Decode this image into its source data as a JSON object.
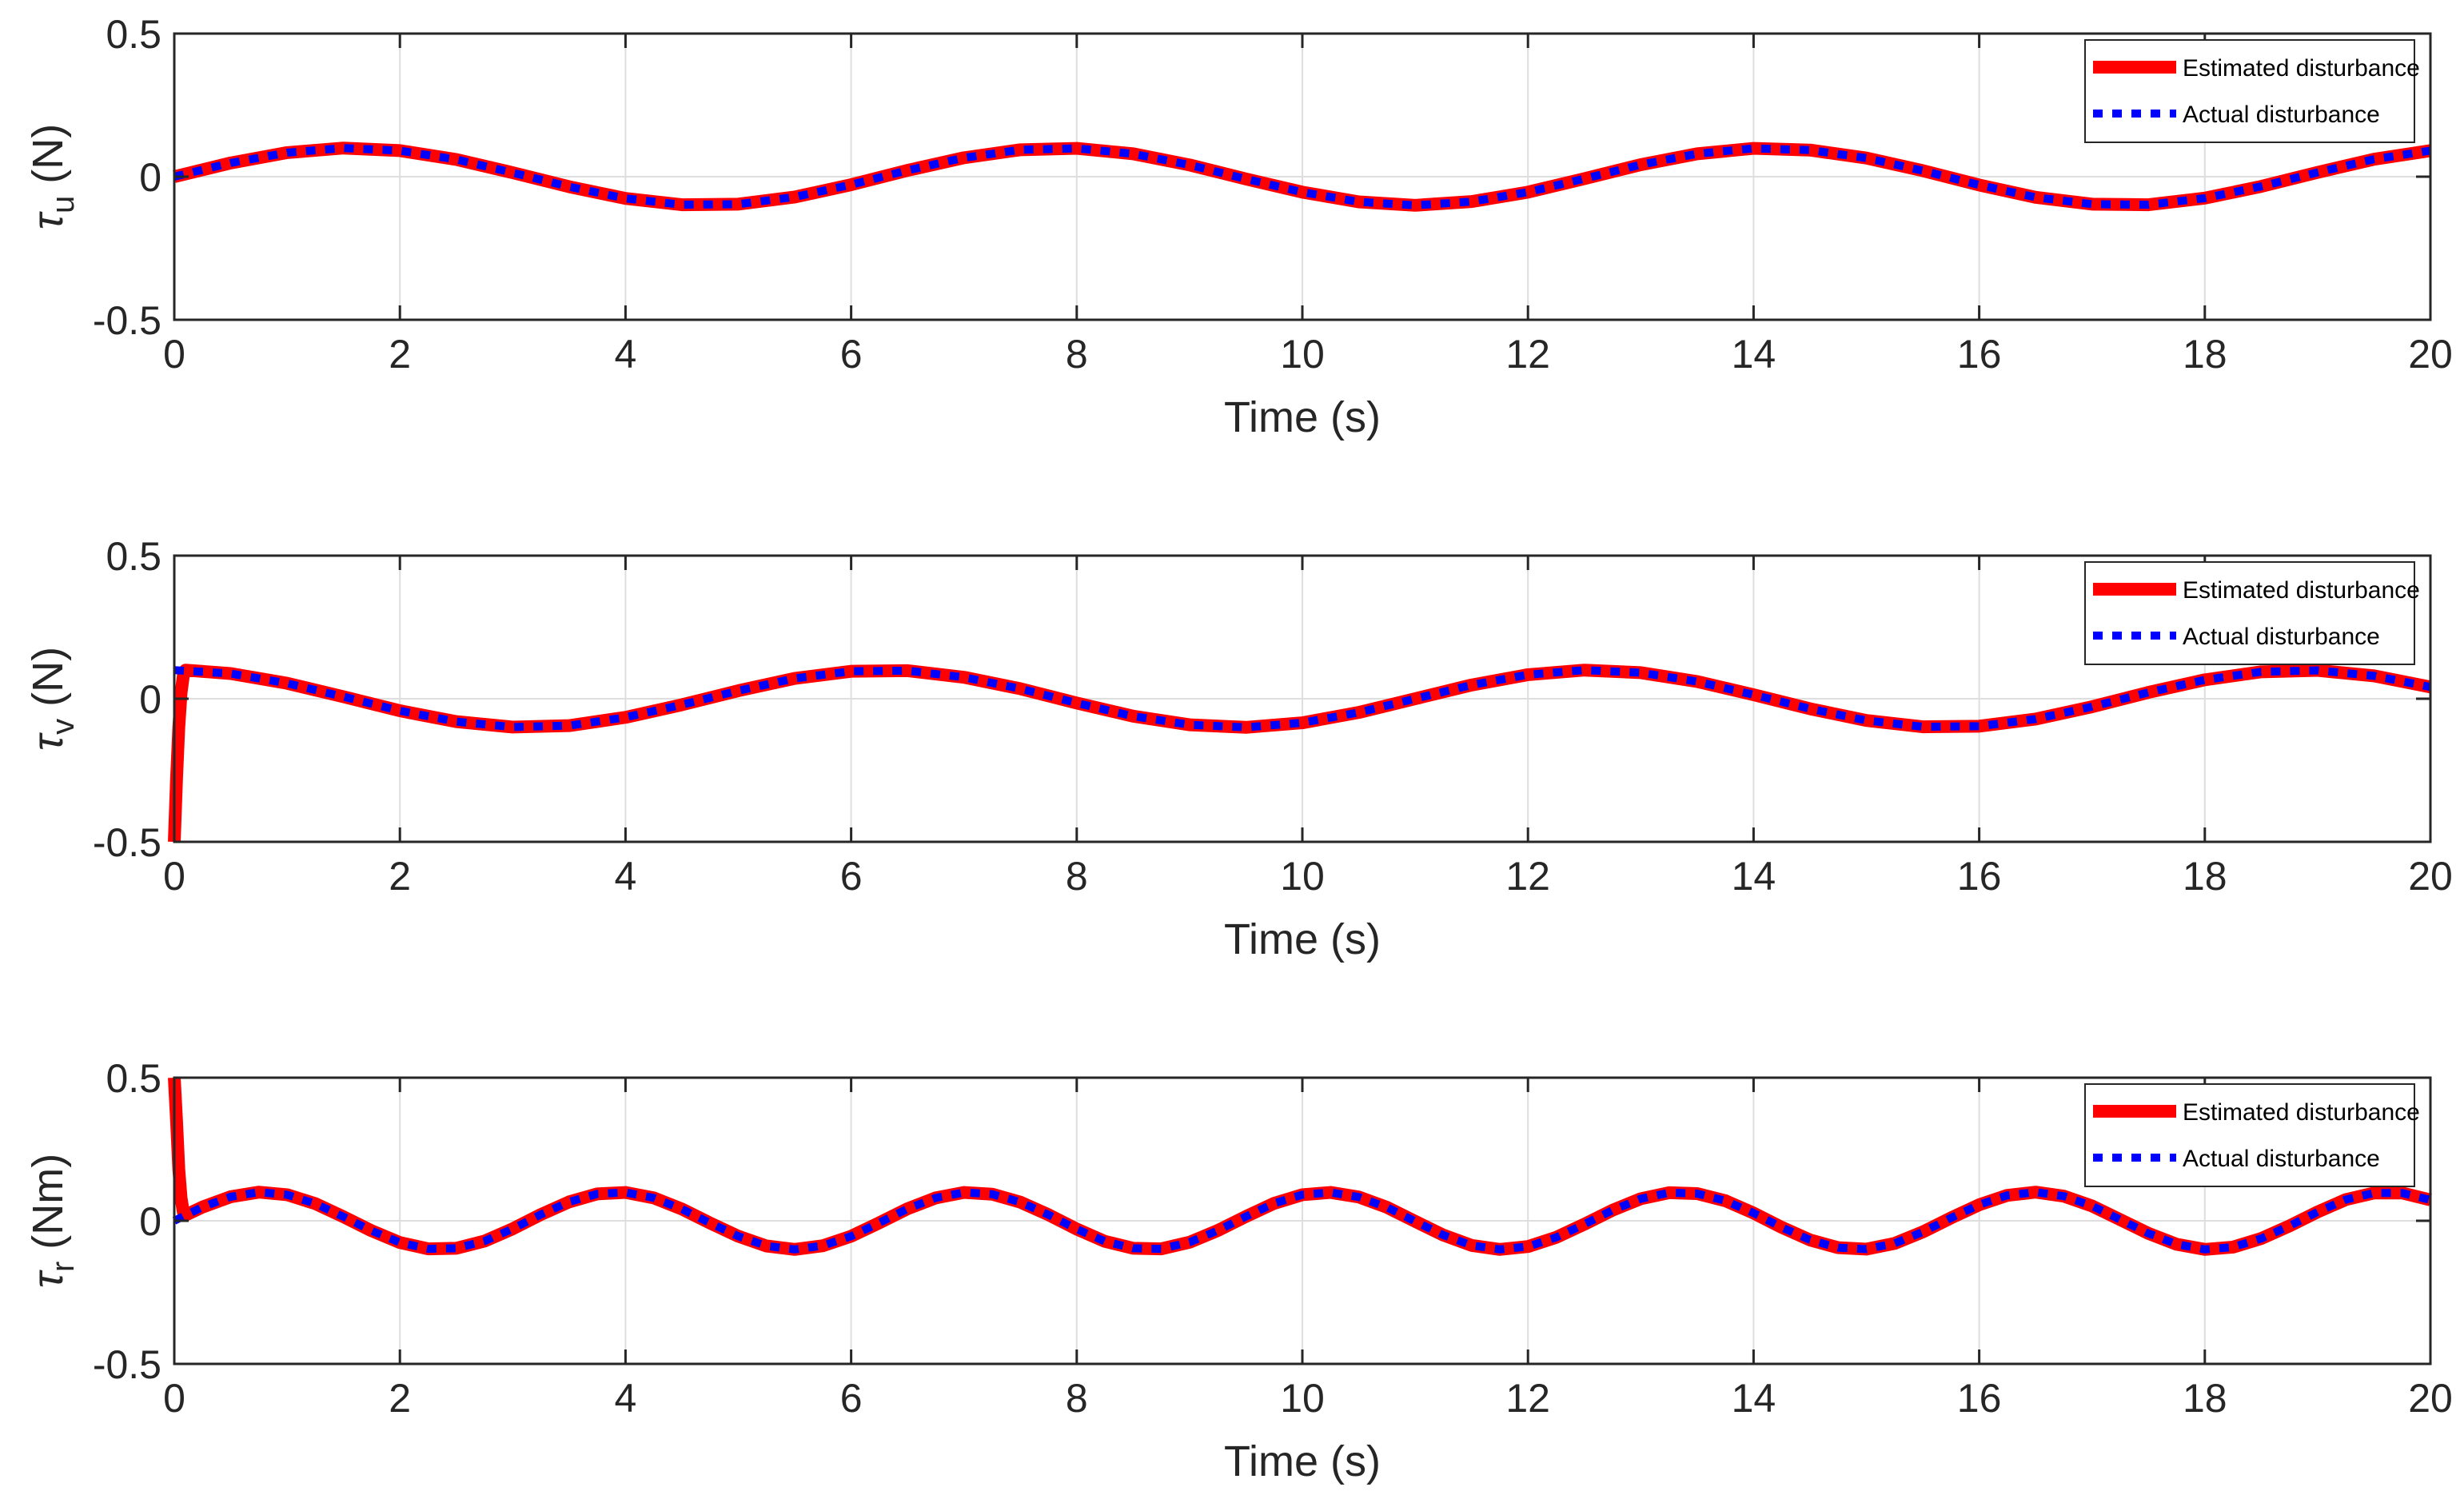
{
  "colors": {
    "estimated": "#ff0000",
    "actual": "#0000ff",
    "grid": "#dedede",
    "axis": "#262626"
  },
  "chart_data": [
    {
      "type": "line",
      "ylabel": {
        "symbol": "τ",
        "sub": "u",
        "unit": " (N)"
      },
      "xlabel": "Time (s)",
      "xlim": [
        0,
        20
      ],
      "ylim": [
        -0.5,
        0.5
      ],
      "xticks": [
        "0",
        "2",
        "4",
        "6",
        "8",
        "10",
        "12",
        "14",
        "16",
        "18",
        "20"
      ],
      "yticks": [
        "-0.5",
        "0",
        "0.5"
      ],
      "grid": true,
      "legend_position": "top-right",
      "series": [
        {
          "name": "Estimated disturbance",
          "style": "solid",
          "color": "#ff0000",
          "x": [
            0,
            0.5,
            1,
            1.5,
            2,
            2.5,
            3,
            3.5,
            4,
            4.5,
            5,
            5.5,
            6,
            6.5,
            7,
            7.5,
            8,
            8.5,
            9,
            9.5,
            10,
            10.5,
            11,
            11.5,
            12,
            12.5,
            13,
            13.5,
            14,
            14.5,
            15,
            15.5,
            16,
            16.5,
            17,
            17.5,
            18,
            18.5,
            19,
            19.5,
            20
          ],
          "y": [
            0,
            0.048,
            0.084,
            0.1,
            0.091,
            0.06,
            0.014,
            -0.035,
            -0.076,
            -0.098,
            -0.096,
            -0.071,
            -0.028,
            0.022,
            0.066,
            0.094,
            0.099,
            0.08,
            0.041,
            -0.008,
            -0.054,
            -0.088,
            -0.1,
            -0.087,
            -0.054,
            -0.007,
            0.042,
            0.08,
            0.099,
            0.093,
            0.065,
            0.021,
            -0.029,
            -0.072,
            -0.096,
            -0.098,
            -0.075,
            -0.034,
            0.015,
            0.061,
            0.091
          ]
        },
        {
          "name": "Actual disturbance",
          "style": "dotted",
          "color": "#0000ff",
          "x": [
            0,
            0.5,
            1,
            1.5,
            2,
            2.5,
            3,
            3.5,
            4,
            4.5,
            5,
            5.5,
            6,
            6.5,
            7,
            7.5,
            8,
            8.5,
            9,
            9.5,
            10,
            10.5,
            11,
            11.5,
            12,
            12.5,
            13,
            13.5,
            14,
            14.5,
            15,
            15.5,
            16,
            16.5,
            17,
            17.5,
            18,
            18.5,
            19,
            19.5,
            20
          ],
          "y": [
            0,
            0.048,
            0.084,
            0.1,
            0.091,
            0.06,
            0.014,
            -0.035,
            -0.076,
            -0.098,
            -0.096,
            -0.071,
            -0.028,
            0.022,
            0.066,
            0.094,
            0.099,
            0.08,
            0.041,
            -0.008,
            -0.054,
            -0.088,
            -0.1,
            -0.087,
            -0.054,
            -0.007,
            0.042,
            0.08,
            0.099,
            0.093,
            0.065,
            0.021,
            -0.029,
            -0.072,
            -0.096,
            -0.098,
            -0.075,
            -0.034,
            0.015,
            0.061,
            0.091
          ]
        }
      ]
    },
    {
      "type": "line",
      "ylabel": {
        "symbol": "τ",
        "sub": "v",
        "unit": " (N)"
      },
      "xlabel": "Time (s)",
      "xlim": [
        0,
        20
      ],
      "ylim": [
        -0.5,
        0.5
      ],
      "xticks": [
        "0",
        "2",
        "4",
        "6",
        "8",
        "10",
        "12",
        "14",
        "16",
        "18",
        "20"
      ],
      "yticks": [
        "-0.5",
        "0",
        "0.5"
      ],
      "grid": true,
      "legend_position": "top-right",
      "series": [
        {
          "name": "Estimated disturbance",
          "style": "solid",
          "color": "#ff0000",
          "x": [
            0,
            0.02,
            0.04,
            0.06,
            0.08,
            0.1,
            0.5,
            1,
            1.5,
            2,
            2.5,
            3,
            3.5,
            4,
            4.5,
            5,
            5.5,
            6,
            6.5,
            7,
            7.5,
            8,
            8.5,
            9,
            9.5,
            10,
            10.5,
            11,
            11.5,
            12,
            12.5,
            13,
            13.5,
            14,
            14.5,
            15,
            15.5,
            16,
            16.5,
            17,
            17.5,
            18,
            18.5,
            19,
            19.5,
            20
          ],
          "y": [
            -0.5,
            -0.28,
            -0.1,
            0.02,
            0.08,
            0.1,
            0.088,
            0.054,
            0.007,
            -0.042,
            -0.08,
            -0.099,
            -0.094,
            -0.065,
            -0.021,
            0.028,
            0.071,
            0.096,
            0.098,
            0.075,
            0.035,
            -0.015,
            -0.061,
            -0.091,
            -0.1,
            -0.084,
            -0.048,
            0.0,
            0.048,
            0.084,
            0.1,
            0.091,
            0.06,
            0.014,
            -0.035,
            -0.076,
            -0.098,
            -0.096,
            -0.071,
            -0.028,
            0.022,
            0.066,
            0.094,
            0.099,
            0.08,
            0.041
          ]
        },
        {
          "name": "Actual disturbance",
          "style": "dotted",
          "color": "#0000ff",
          "x": [
            0,
            0.5,
            1,
            1.5,
            2,
            2.5,
            3,
            3.5,
            4,
            4.5,
            5,
            5.5,
            6,
            6.5,
            7,
            7.5,
            8,
            8.5,
            9,
            9.5,
            10,
            10.5,
            11,
            11.5,
            12,
            12.5,
            13,
            13.5,
            14,
            14.5,
            15,
            15.5,
            16,
            16.5,
            17,
            17.5,
            18,
            18.5,
            19,
            19.5,
            20
          ],
          "y": [
            0.1,
            0.088,
            0.054,
            0.007,
            -0.042,
            -0.08,
            -0.099,
            -0.094,
            -0.065,
            -0.021,
            0.028,
            0.071,
            0.096,
            0.098,
            0.075,
            0.035,
            -0.015,
            -0.061,
            -0.091,
            -0.1,
            -0.084,
            -0.048,
            0.0,
            0.048,
            0.084,
            0.1,
            0.091,
            0.06,
            0.014,
            -0.035,
            -0.076,
            -0.098,
            -0.096,
            -0.071,
            -0.028,
            0.022,
            0.066,
            0.094,
            0.099,
            0.08,
            0.041
          ]
        }
      ]
    },
    {
      "type": "line",
      "ylabel": {
        "symbol": "τ",
        "sub": "r",
        "unit": " (Nm)"
      },
      "xlabel": "Time (s)",
      "xlim": [
        0,
        20
      ],
      "ylim": [
        -0.5,
        0.5
      ],
      "xticks": [
        "0",
        "2",
        "4",
        "6",
        "8",
        "10",
        "12",
        "14",
        "16",
        "18",
        "20"
      ],
      "yticks": [
        "-0.5",
        "0",
        "0.5"
      ],
      "grid": true,
      "legend_position": "top-right",
      "series": [
        {
          "name": "Estimated disturbance",
          "style": "solid",
          "color": "#ff0000",
          "x": [
            0,
            0.02,
            0.04,
            0.06,
            0.08,
            0.1,
            0.25,
            0.5,
            0.75,
            1,
            1.25,
            1.5,
            1.75,
            2,
            2.25,
            2.5,
            2.75,
            3,
            3.25,
            3.5,
            3.75,
            4,
            4.25,
            4.5,
            4.75,
            5,
            5.25,
            5.5,
            5.75,
            6,
            6.25,
            6.5,
            6.75,
            7,
            7.25,
            7.5,
            7.75,
            8,
            8.25,
            8.5,
            8.75,
            9,
            9.25,
            9.5,
            9.75,
            10,
            10.25,
            10.5,
            10.75,
            11,
            11.25,
            11.5,
            11.75,
            12,
            12.25,
            12.5,
            12.75,
            13,
            13.25,
            13.5,
            13.75,
            14,
            14.25,
            14.5,
            14.75,
            15,
            15.25,
            15.5,
            15.75,
            16,
            16.25,
            16.5,
            16.75,
            17,
            17.25,
            17.5,
            17.75,
            18,
            18.25,
            18.5,
            18.75,
            19,
            19.25,
            19.5,
            19.75,
            20
          ],
          "y": [
            0.5,
            0.35,
            0.18,
            0.08,
            0.03,
            0.02,
            0.048,
            0.084,
            0.1,
            0.091,
            0.06,
            0.014,
            -0.035,
            -0.076,
            -0.098,
            -0.096,
            -0.071,
            -0.028,
            0.022,
            0.066,
            0.094,
            0.099,
            0.08,
            0.041,
            -0.008,
            -0.054,
            -0.088,
            -0.1,
            -0.087,
            -0.054,
            -0.007,
            0.042,
            0.08,
            0.099,
            0.093,
            0.065,
            0.021,
            -0.029,
            -0.072,
            -0.096,
            -0.098,
            -0.075,
            -0.034,
            0.015,
            0.061,
            0.091,
            0.099,
            0.083,
            0.047,
            -0.002,
            -0.05,
            -0.086,
            -0.1,
            -0.09,
            -0.058,
            -0.012,
            0.037,
            0.077,
            0.098,
            0.095,
            0.07,
            0.027,
            -0.023,
            -0.067,
            -0.094,
            -0.099,
            -0.079,
            -0.039,
            0.01,
            0.056,
            0.089,
            0.1,
            0.086,
            0.052,
            0.004,
            -0.044,
            -0.082,
            -0.1,
            -0.092,
            -0.062,
            -0.018,
            0.031,
            0.074,
            0.097,
            0.097,
            0.073
          ]
        },
        {
          "name": "Actual disturbance",
          "style": "dotted",
          "color": "#0000ff",
          "x": [
            0,
            0.25,
            0.5,
            0.75,
            1,
            1.25,
            1.5,
            1.75,
            2,
            2.25,
            2.5,
            2.75,
            3,
            3.25,
            3.5,
            3.75,
            4,
            4.25,
            4.5,
            4.75,
            5,
            5.25,
            5.5,
            5.75,
            6,
            6.25,
            6.5,
            6.75,
            7,
            7.25,
            7.5,
            7.75,
            8,
            8.25,
            8.5,
            8.75,
            9,
            9.25,
            9.5,
            9.75,
            10,
            10.25,
            10.5,
            10.75,
            11,
            11.25,
            11.5,
            11.75,
            12,
            12.25,
            12.5,
            12.75,
            13,
            13.25,
            13.5,
            13.75,
            14,
            14.25,
            14.5,
            14.75,
            15,
            15.25,
            15.5,
            15.75,
            16,
            16.25,
            16.5,
            16.75,
            17,
            17.25,
            17.5,
            17.75,
            18,
            18.25,
            18.5,
            18.75,
            19,
            19.25,
            19.5,
            19.75,
            20
          ],
          "y": [
            0,
            0.048,
            0.084,
            0.1,
            0.091,
            0.06,
            0.014,
            -0.035,
            -0.076,
            -0.098,
            -0.096,
            -0.071,
            -0.028,
            0.022,
            0.066,
            0.094,
            0.099,
            0.08,
            0.041,
            -0.008,
            -0.054,
            -0.088,
            -0.1,
            -0.087,
            -0.054,
            -0.007,
            0.042,
            0.08,
            0.099,
            0.093,
            0.065,
            0.021,
            -0.029,
            -0.072,
            -0.096,
            -0.098,
            -0.075,
            -0.034,
            0.015,
            0.061,
            0.091,
            0.099,
            0.083,
            0.047,
            -0.002,
            -0.05,
            -0.086,
            -0.1,
            -0.09,
            -0.058,
            -0.012,
            0.037,
            0.077,
            0.098,
            0.095,
            0.07,
            0.027,
            -0.023,
            -0.067,
            -0.094,
            -0.099,
            -0.079,
            -0.039,
            0.01,
            0.056,
            0.089,
            0.1,
            0.086,
            0.052,
            0.004,
            -0.044,
            -0.082,
            -0.1,
            -0.092,
            -0.062,
            -0.018,
            0.031,
            0.074,
            0.097,
            0.097,
            0.073
          ]
        }
      ]
    }
  ]
}
